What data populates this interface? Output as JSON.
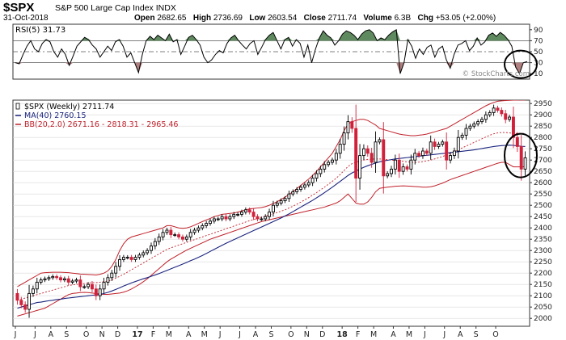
{
  "header": {
    "symbol": "$SPX",
    "name": "S&P 500 Large Cap Index",
    "exchange": "INDX",
    "date": "31-Oct-2018",
    "open_label": "Open",
    "open": "2682.65",
    "high_label": "High",
    "high": "2736.69",
    "low_label": "Low",
    "low": "2603.54",
    "close_label": "Close",
    "close": "2711.74",
    "volume_label": "Volume",
    "volume": "6.3B",
    "chg_label": "Chg",
    "chg": "+53.05 (+2.00%)",
    "watermark": "© StockCharts.com"
  },
  "chart_data": [
    {
      "type": "line",
      "panel": "rsi",
      "legend": "RSI(5) 31.73",
      "ylim": [
        0,
        100
      ],
      "yticks": [
        10,
        30,
        50,
        70,
        90
      ],
      "reference_lines": [
        30,
        50,
        70
      ],
      "shaded_above": 70,
      "shaded_below": 30,
      "colors": {
        "line": "#000000",
        "overbought_fill": "#5f8a5f",
        "oversold_fill": "#b08080"
      },
      "values": [
        30,
        28,
        45,
        60,
        70,
        55,
        50,
        65,
        72,
        68,
        50,
        40,
        55,
        45,
        25,
        42,
        60,
        68,
        76,
        72,
        62,
        55,
        40,
        50,
        60,
        52,
        68,
        72,
        60,
        40,
        48,
        30,
        12,
        45,
        70,
        78,
        72,
        80,
        75,
        70,
        82,
        68,
        72,
        45,
        60,
        76,
        80,
        72,
        62,
        40,
        30,
        35,
        45,
        52,
        48,
        65,
        75,
        80,
        70,
        62,
        55,
        65,
        70,
        45,
        58,
        72,
        80,
        85,
        70,
        55,
        72,
        76,
        60,
        72,
        65,
        40,
        62,
        30,
        55,
        75,
        88,
        80,
        75,
        62,
        70,
        82,
        88,
        85,
        80,
        72,
        82,
        88,
        90,
        84,
        70,
        75,
        72,
        80,
        86,
        90,
        10,
        30,
        72,
        60,
        38,
        55,
        45,
        58,
        62,
        40,
        55,
        60,
        35,
        20,
        45,
        62,
        65,
        70,
        52,
        60,
        75,
        62,
        68,
        80,
        84,
        78,
        85,
        80,
        72,
        60,
        22,
        10,
        30,
        32
      ]
    },
    {
      "type": "candlestick",
      "panel": "price",
      "legend": [
        {
          "text": "$SPX (Weekly) 2711.74",
          "color": "#000000"
        },
        {
          "text": "MA(40) 2760.15",
          "color": "#1a237e"
        },
        {
          "text": "BB(20,2.0) 2671.16 - 2818.31 - 2965.46",
          "color": "#c0202a"
        }
      ],
      "ylim": [
        1965,
        2965
      ],
      "yticks": [
        2000,
        2050,
        2100,
        2150,
        2200,
        2250,
        2300,
        2350,
        2400,
        2450,
        2500,
        2550,
        2600,
        2650,
        2700,
        2750,
        2800,
        2850,
        2900,
        2950
      ],
      "x_tick_labels": [
        "J",
        "J",
        "A",
        "S",
        "O",
        "N",
        "D",
        "17",
        "F",
        "M",
        "A",
        "M",
        "J",
        "J",
        "A",
        "S",
        "O",
        "N",
        "D",
        "18",
        "F",
        "M",
        "A",
        "M",
        "J",
        "J",
        "A",
        "S",
        "O"
      ],
      "x_tick_weeks": [
        0,
        5,
        9,
        13,
        18,
        22,
        26,
        31,
        35,
        39,
        44,
        48,
        52,
        57,
        61,
        65,
        70,
        74,
        78,
        83,
        87,
        91,
        96,
        100,
        104,
        109,
        113,
        117,
        122
      ],
      "colors": {
        "up": "#000000",
        "down": "#d0203a",
        "ma": "#1a237e",
        "bb": "#c0202a"
      },
      "close": [
        2080,
        2060,
        2040,
        2110,
        2130,
        2160,
        2170,
        2175,
        2180,
        2185,
        2180,
        2170,
        2175,
        2160,
        2165,
        2170,
        2140,
        2140,
        2150,
        2130,
        2100,
        2130,
        2160,
        2180,
        2200,
        2230,
        2260,
        2270,
        2270,
        2260,
        2270,
        2280,
        2290,
        2300,
        2320,
        2340,
        2360,
        2380,
        2390,
        2370,
        2370,
        2360,
        2350,
        2360,
        2380,
        2390,
        2400,
        2410,
        2420,
        2430,
        2440,
        2440,
        2450,
        2440,
        2450,
        2460,
        2460,
        2470,
        2480,
        2470,
        2450,
        2440,
        2440,
        2450,
        2470,
        2500,
        2510,
        2520,
        2530,
        2550,
        2560,
        2570,
        2580,
        2590,
        2600,
        2620,
        2640,
        2660,
        2680,
        2690,
        2700,
        2730,
        2770,
        2820,
        2870,
        2840,
        2620,
        2720,
        2750,
        2730,
        2690,
        2780,
        2790,
        2630,
        2640,
        2660,
        2700,
        2650,
        2670,
        2660,
        2700,
        2730,
        2720,
        2740,
        2730,
        2780,
        2760,
        2770,
        2780,
        2700,
        2720,
        2740,
        2800,
        2810,
        2840,
        2850,
        2860,
        2870,
        2880,
        2900,
        2910,
        2930,
        2920,
        2905,
        2880,
        2890,
        2800,
        2760,
        2660,
        2710
      ],
      "ma40": [
        2045,
        2050,
        2055,
        2060,
        2065,
        2070,
        2072,
        2075,
        2078,
        2080,
        2083,
        2085,
        2088,
        2090,
        2092,
        2094,
        2096,
        2098,
        2100,
        2102,
        2104,
        2106,
        2110,
        2115,
        2121,
        2128,
        2135,
        2143,
        2150,
        2157,
        2163,
        2169,
        2175,
        2180,
        2186,
        2192,
        2198,
        2205,
        2212,
        2219,
        2226,
        2233,
        2240,
        2247,
        2255,
        2262,
        2270,
        2278,
        2287,
        2296,
        2305,
        2314,
        2323,
        2332,
        2340,
        2348,
        2356,
        2364,
        2372,
        2380,
        2388,
        2396,
        2404,
        2412,
        2420,
        2428,
        2436,
        2444,
        2453,
        2462,
        2472,
        2482,
        2492,
        2502,
        2512,
        2522,
        2533,
        2544,
        2556,
        2568,
        2580,
        2593,
        2606,
        2619,
        2632,
        2643,
        2651,
        2660,
        2668,
        2675,
        2681,
        2687,
        2692,
        2696,
        2699,
        2702,
        2705,
        2707,
        2709,
        2711,
        2713,
        2715,
        2717,
        2719,
        2721,
        2723,
        2725,
        2727,
        2729,
        2731,
        2733,
        2735,
        2737,
        2739,
        2741,
        2743,
        2745,
        2748,
        2751,
        2754,
        2757,
        2760,
        2762,
        2764,
        2765,
        2766,
        2765,
        2763,
        2761,
        2760
      ],
      "bb_upper": [
        2140,
        2150,
        2160,
        2170,
        2180,
        2190,
        2200,
        2202,
        2203,
        2204,
        2204,
        2204,
        2203,
        2202,
        2200,
        2198,
        2196,
        2195,
        2194,
        2193,
        2192,
        2195,
        2200,
        2210,
        2230,
        2260,
        2300,
        2330,
        2350,
        2360,
        2365,
        2370,
        2375,
        2380,
        2385,
        2390,
        2395,
        2400,
        2410,
        2410,
        2405,
        2400,
        2398,
        2400,
        2405,
        2412,
        2420,
        2428,
        2435,
        2442,
        2450,
        2455,
        2460,
        2462,
        2464,
        2466,
        2470,
        2475,
        2480,
        2484,
        2486,
        2488,
        2490,
        2494,
        2500,
        2508,
        2516,
        2526,
        2536,
        2548,
        2560,
        2574,
        2588,
        2602,
        2616,
        2632,
        2650,
        2670,
        2690,
        2710,
        2730,
        2760,
        2790,
        2830,
        2860,
        2870,
        2875,
        2880,
        2880,
        2875,
        2865,
        2855,
        2840,
        2835,
        2830,
        2825,
        2820,
        2815,
        2812,
        2810,
        2808,
        2808,
        2810,
        2812,
        2815,
        2820,
        2825,
        2830,
        2835,
        2840,
        2850,
        2860,
        2870,
        2880,
        2890,
        2900,
        2910,
        2920,
        2930,
        2940,
        2948,
        2955,
        2960,
        2962,
        2963,
        2964,
        2965,
        2965,
        2966,
        2965
      ],
      "bb_middle": [
        2080,
        2085,
        2090,
        2095,
        2100,
        2105,
        2110,
        2115,
        2120,
        2125,
        2130,
        2135,
        2140,
        2145,
        2148,
        2150,
        2152,
        2154,
        2156,
        2158,
        2158,
        2160,
        2162,
        2165,
        2170,
        2178,
        2186,
        2195,
        2205,
        2215,
        2225,
        2235,
        2245,
        2255,
        2265,
        2275,
        2285,
        2295,
        2305,
        2312,
        2318,
        2324,
        2330,
        2336,
        2342,
        2348,
        2354,
        2360,
        2366,
        2372,
        2378,
        2384,
        2390,
        2396,
        2402,
        2408,
        2414,
        2420,
        2426,
        2432,
        2437,
        2442,
        2447,
        2452,
        2457,
        2462,
        2468,
        2474,
        2480,
        2488,
        2496,
        2505,
        2514,
        2524,
        2534,
        2545,
        2556,
        2568,
        2580,
        2593,
        2606,
        2620,
        2636,
        2654,
        2672,
        2684,
        2690,
        2696,
        2700,
        2703,
        2704,
        2705,
        2705,
        2704,
        2702,
        2700,
        2698,
        2696,
        2694,
        2692,
        2690,
        2690,
        2691,
        2693,
        2696,
        2700,
        2705,
        2710,
        2716,
        2722,
        2730,
        2738,
        2746,
        2754,
        2762,
        2770,
        2778,
        2786,
        2794,
        2802,
        2810,
        2816,
        2820,
        2822,
        2822,
        2820,
        2818,
        2817,
        2818,
        2818
      ],
      "bb_lower": [
        2010,
        2015,
        2020,
        2025,
        2030,
        2035,
        2040,
        2045,
        2055,
        2065,
        2075,
        2085,
        2095,
        2105,
        2110,
        2112,
        2114,
        2115,
        2114,
        2112,
        2110,
        2108,
        2106,
        2106,
        2108,
        2110,
        2112,
        2116,
        2122,
        2130,
        2140,
        2150,
        2162,
        2175,
        2190,
        2205,
        2220,
        2235,
        2250,
        2262,
        2272,
        2282,
        2292,
        2302,
        2310,
        2318,
        2326,
        2334,
        2342,
        2350,
        2356,
        2362,
        2368,
        2374,
        2380,
        2386,
        2392,
        2398,
        2404,
        2410,
        2416,
        2422,
        2428,
        2432,
        2436,
        2440,
        2444,
        2448,
        2452,
        2456,
        2460,
        2464,
        2468,
        2472,
        2476,
        2480,
        2484,
        2488,
        2492,
        2498,
        2504,
        2510,
        2520,
        2535,
        2550,
        2530,
        2510,
        2505,
        2505,
        2515,
        2535,
        2560,
        2575,
        2578,
        2580,
        2582,
        2584,
        2585,
        2586,
        2585,
        2584,
        2583,
        2582,
        2580,
        2580,
        2582,
        2586,
        2592,
        2598,
        2606,
        2614,
        2620,
        2626,
        2632,
        2638,
        2644,
        2650,
        2656,
        2662,
        2668,
        2674,
        2680,
        2686,
        2690,
        2690,
        2680,
        2670,
        2670,
        2670,
        2671
      ]
    }
  ]
}
